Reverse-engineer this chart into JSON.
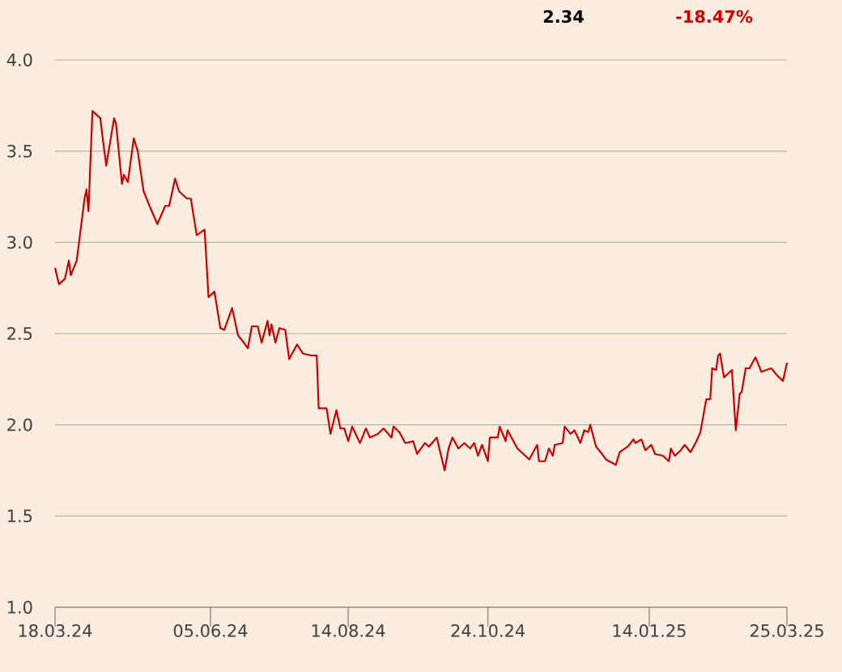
{
  "chart_data": {
    "type": "line",
    "x": [
      "2024-03-18",
      "2024-03-20",
      "2024-03-23",
      "2024-03-25",
      "2024-03-26",
      "2024-03-29",
      "2024-04-02",
      "2024-04-03",
      "2024-04-04",
      "2024-04-06",
      "2024-04-10",
      "2024-04-11",
      "2024-04-13",
      "2024-04-17",
      "2024-04-18",
      "2024-04-21",
      "2024-04-22",
      "2024-04-24",
      "2024-04-27",
      "2024-04-29",
      "2024-05-02",
      "2024-05-05",
      "2024-05-09",
      "2024-05-13",
      "2024-05-15",
      "2024-05-18",
      "2024-05-20",
      "2024-05-24",
      "2024-05-26",
      "2024-05-29",
      "2024-06-02",
      "2024-06-04",
      "2024-06-07",
      "2024-06-10",
      "2024-06-12",
      "2024-06-16",
      "2024-06-19",
      "2024-06-22",
      "2024-06-24",
      "2024-06-26",
      "2024-06-29",
      "2024-07-01",
      "2024-07-04",
      "2024-07-05",
      "2024-07-06",
      "2024-07-08",
      "2024-07-10",
      "2024-07-13",
      "2024-07-15",
      "2024-07-19",
      "2024-07-22",
      "2024-07-26",
      "2024-07-29",
      "2024-07-30",
      "2024-08-03",
      "2024-08-05",
      "2024-08-08",
      "2024-08-10",
      "2024-08-12",
      "2024-08-14",
      "2024-08-16",
      "2024-08-20",
      "2024-08-23",
      "2024-08-25",
      "2024-08-29",
      "2024-09-01",
      "2024-09-05",
      "2024-09-06",
      "2024-09-09",
      "2024-09-12",
      "2024-09-16",
      "2024-09-18",
      "2024-09-22",
      "2024-09-24",
      "2024-09-28",
      "2024-10-02",
      "2024-10-04",
      "2024-10-06",
      "2024-10-09",
      "2024-10-12",
      "2024-10-15",
      "2024-10-17",
      "2024-10-19",
      "2024-10-21",
      "2024-10-24",
      "2024-10-25",
      "2024-10-29",
      "2024-10-30",
      "2024-11-02",
      "2024-11-03",
      "2024-11-06",
      "2024-11-08",
      "2024-11-11",
      "2024-11-14",
      "2024-11-18",
      "2024-11-19",
      "2024-11-22",
      "2024-11-24",
      "2024-11-26",
      "2024-11-27",
      "2024-12-01",
      "2024-12-02",
      "2024-12-05",
      "2024-12-07",
      "2024-12-10",
      "2024-12-12",
      "2024-12-14",
      "2024-12-15",
      "2024-12-18",
      "2024-12-21",
      "2024-12-23",
      "2024-12-28",
      "2024-12-30",
      "2025-01-03",
      "2025-01-06",
      "2025-01-07",
      "2025-01-10",
      "2025-01-12",
      "2025-01-15",
      "2025-01-17",
      "2025-01-21",
      "2025-01-24",
      "2025-01-25",
      "2025-01-27",
      "2025-01-30",
      "2025-02-01",
      "2025-02-04",
      "2025-02-07",
      "2025-02-09",
      "2025-02-12",
      "2025-02-14",
      "2025-02-15",
      "2025-02-17",
      "2025-02-18",
      "2025-02-19",
      "2025-02-21",
      "2025-02-24",
      "2025-02-25",
      "2025-02-27",
      "2025-03-01",
      "2025-03-02",
      "2025-03-04",
      "2025-03-06",
      "2025-03-09",
      "2025-03-12",
      "2025-03-17",
      "2025-03-20",
      "2025-03-23",
      "2025-03-25"
    ],
    "series": [
      {
        "color": "#cc0000",
        "values": [
          2.86,
          2.77,
          2.8,
          2.9,
          2.82,
          2.9,
          3.24,
          3.29,
          3.17,
          3.72,
          3.68,
          3.59,
          3.42,
          3.68,
          3.65,
          3.32,
          3.37,
          3.33,
          3.57,
          3.5,
          3.28,
          3.2,
          3.1,
          3.2,
          3.2,
          3.35,
          3.28,
          3.24,
          3.24,
          3.04,
          3.07,
          2.7,
          2.73,
          2.53,
          2.52,
          2.64,
          2.49,
          2.45,
          2.42,
          2.54,
          2.54,
          2.45,
          2.57,
          2.49,
          2.55,
          2.45,
          2.53,
          2.52,
          2.36,
          2.44,
          2.39,
          2.38,
          2.38,
          2.09,
          2.09,
          1.95,
          2.08,
          1.98,
          1.98,
          1.91,
          1.99,
          1.9,
          1.98,
          1.93,
          1.95,
          1.98,
          1.93,
          1.99,
          1.96,
          1.9,
          1.91,
          1.84,
          1.9,
          1.88,
          1.93,
          1.75,
          1.87,
          1.93,
          1.87,
          1.9,
          1.87,
          1.9,
          1.83,
          1.89,
          1.8,
          1.93,
          1.93,
          1.99,
          1.91,
          1.97,
          1.91,
          1.87,
          1.84,
          1.81,
          1.89,
          1.8,
          1.8,
          1.87,
          1.83,
          1.89,
          1.9,
          1.99,
          1.95,
          1.97,
          1.9,
          1.97,
          1.96,
          2.0,
          1.88,
          1.84,
          1.81,
          1.78,
          1.85,
          1.88,
          1.92,
          1.9,
          1.92,
          1.86,
          1.89,
          1.84,
          1.83,
          1.8,
          1.87,
          1.83,
          1.86,
          1.89,
          1.85,
          1.91,
          1.96,
          2.14,
          2.14,
          2.31,
          2.3,
          2.38,
          2.39,
          2.26,
          2.29,
          2.3,
          1.97,
          2.17,
          2.18,
          2.31,
          2.31,
          2.37,
          2.29,
          2.31,
          2.27,
          2.24,
          2.34
        ]
      }
    ],
    "xlim": [
      "2024-03-18",
      "2025-03-25"
    ],
    "xticks": [
      {
        "value": "2024-03-18",
        "label": "18.03.24"
      },
      {
        "value": "2024-06-05",
        "label": "05.06.24"
      },
      {
        "value": "2024-08-14",
        "label": "14.08.24"
      },
      {
        "value": "2024-10-24",
        "label": "24.10.24"
      },
      {
        "value": "2025-01-14",
        "label": "14.01.25"
      },
      {
        "value": "2025-03-25",
        "label": "25.03.25"
      }
    ],
    "ylim": [
      1.0,
      4.0
    ],
    "yticks": [
      {
        "value": 1.0,
        "label": "1.0"
      },
      {
        "value": 1.5,
        "label": "1.5"
      },
      {
        "value": 2.0,
        "label": "2.0"
      },
      {
        "value": 2.5,
        "label": "2.5"
      },
      {
        "value": 3.0,
        "label": "3.0"
      },
      {
        "value": 3.5,
        "label": "3.5"
      },
      {
        "value": 4.0,
        "label": "4.0"
      }
    ],
    "tick_labels": true,
    "grid": "y",
    "marker": "none",
    "line_style": "solid",
    "annotations": [
      "2.34",
      "-18.47%"
    ]
  }
}
